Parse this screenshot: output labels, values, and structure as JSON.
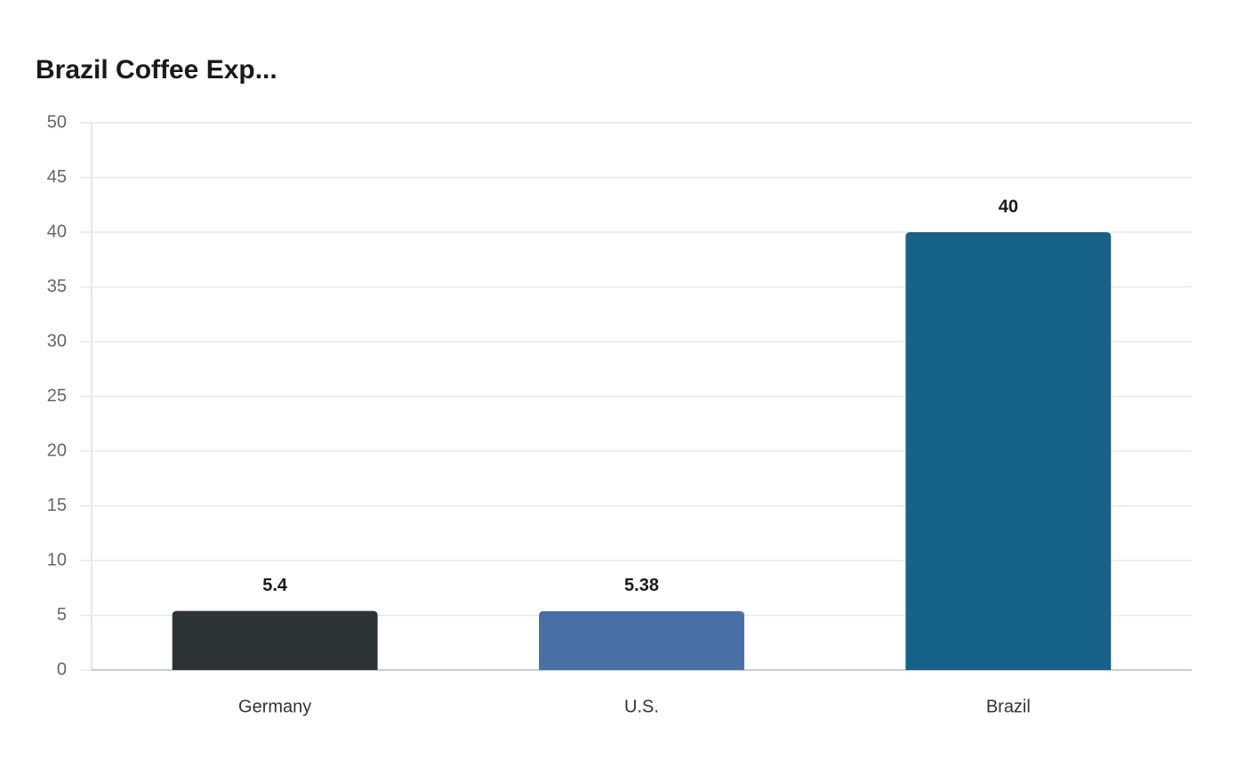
{
  "chart_data": {
    "type": "bar",
    "title": "Brazil Coffee Exp...",
    "categories": [
      "Germany",
      "U.S.",
      "Brazil"
    ],
    "values": [
      5.4,
      5.38,
      40
    ],
    "colors": [
      "#2e3436",
      "#4a6fa5",
      "#186287"
    ],
    "ylim": [
      0,
      50
    ],
    "yticks": [
      0,
      5,
      10,
      15,
      20,
      25,
      30,
      35,
      40,
      45,
      50
    ],
    "grid": true
  }
}
